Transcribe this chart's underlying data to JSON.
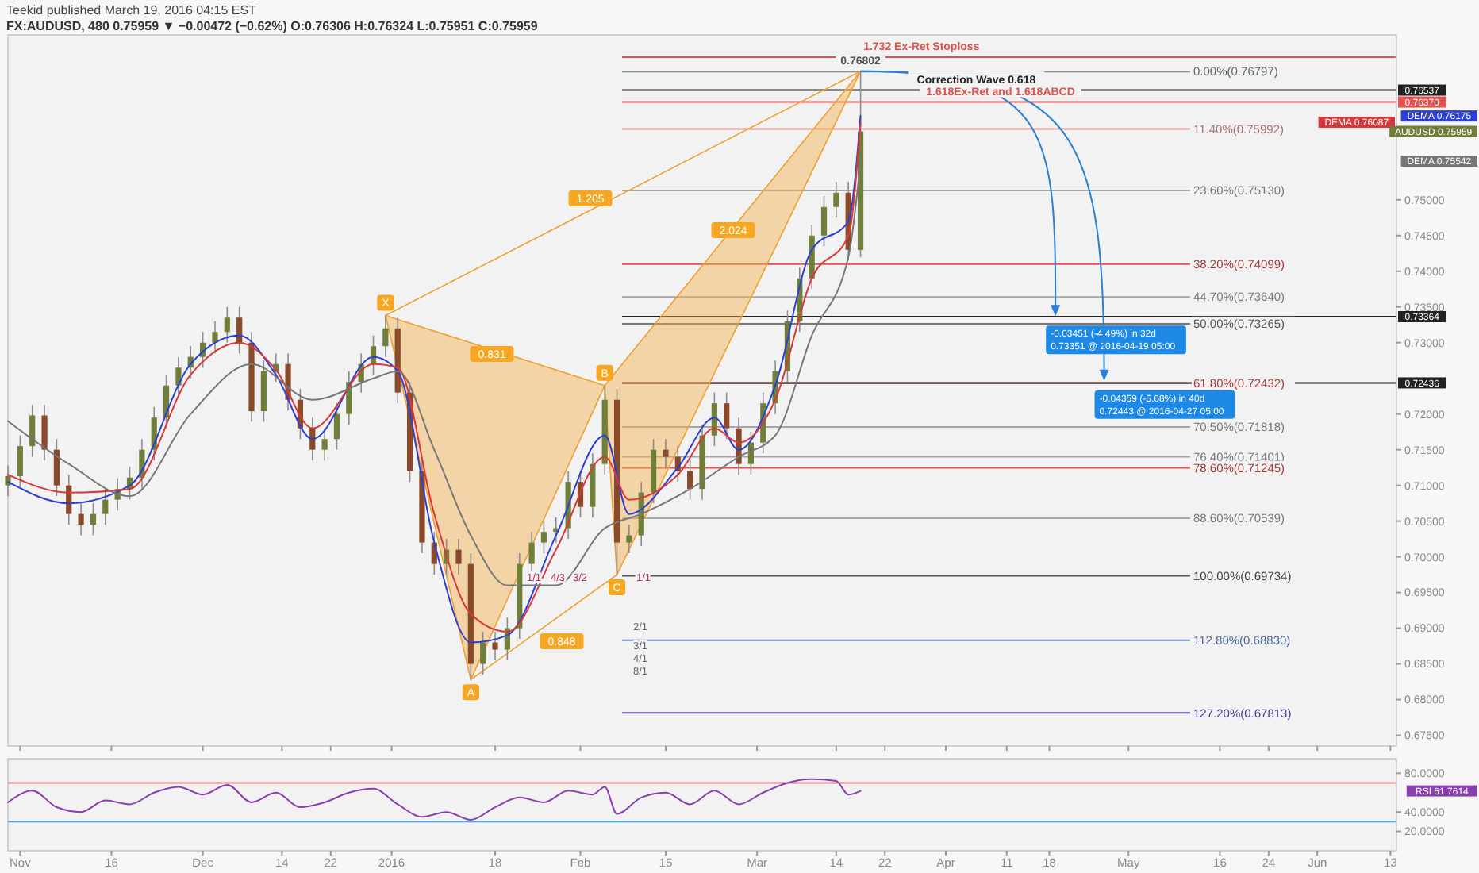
{
  "chart_data": [
    {
      "type": "candlestick",
      "title": "FX:AUDUSD, 480  0.75959 ▼ −0.00472 (−0.62%)  O:0.76306  H:0.76324  L:0.75951  C:0.75959",
      "subtitle": "Teekid published March 19, 2016 04:15 EST",
      "legend": "right",
      "xlim": [
        "2015-10-30",
        "2016-06-14"
      ],
      "xticks": [
        {
          "value": "2015-11-01",
          "label": null
        },
        {
          "value": "2015-11-16",
          "label": null
        },
        {
          "value": "2015-12-01",
          "label": null
        },
        {
          "value": "2015-12-14",
          "label": null
        },
        {
          "value": "2015-12-22",
          "label": null
        },
        {
          "value": "2016-01-01",
          "label": null
        },
        {
          "value": "2016-01-18",
          "label": null
        },
        {
          "value": "2016-02-01",
          "label": null
        },
        {
          "value": "2016-02-15",
          "label": null
        },
        {
          "value": "2016-03-01",
          "label": null
        },
        {
          "value": "2016-03-14",
          "label": null
        },
        {
          "value": "2016-03-22",
          "label": null
        },
        {
          "value": "2016-04-01",
          "label": null
        },
        {
          "value": "2016-04-11",
          "label": null
        },
        {
          "value": "2016-04-18",
          "label": null
        },
        {
          "value": "2016-05-01",
          "label": null
        },
        {
          "value": "2016-05-16",
          "label": null
        },
        {
          "value": "2016-05-24",
          "label": null
        },
        {
          "value": "2016-06-01",
          "label": null
        },
        {
          "value": "2016-06-13",
          "label": null
        }
      ],
      "ylim": [
        0.6735,
        0.7731
      ],
      "yticks": [
        {
          "value": 0.675,
          "label": "0.67500"
        },
        {
          "value": 0.68,
          "label": "0.68000"
        },
        {
          "value": 0.685,
          "label": "0.68500"
        },
        {
          "value": 0.69,
          "label": "0.69000"
        },
        {
          "value": 0.695,
          "label": "0.69500"
        },
        {
          "value": 0.7,
          "label": "0.70000"
        },
        {
          "value": 0.705,
          "label": "0.70500"
        },
        {
          "value": 0.71,
          "label": "0.71000"
        },
        {
          "value": 0.715,
          "label": "0.71500"
        },
        {
          "value": 0.72,
          "label": "0.72000"
        },
        {
          "value": 0.73,
          "label": "0.73000"
        },
        {
          "value": 0.735,
          "label": "0.73500"
        },
        {
          "value": 0.74,
          "label": "0.74000"
        },
        {
          "value": 0.745,
          "label": "0.74500"
        },
        {
          "value": 0.75,
          "label": "0.75000"
        }
      ],
      "tick_labels": "y",
      "series": [
        {
          "name": "AUDUSD 0.75959",
          "x": [
            "2015-10-30",
            "2015-11-01",
            "2015-11-03",
            "2015-11-05",
            "2015-11-07",
            "2015-11-09",
            "2015-11-11",
            "2015-11-13",
            "2015-11-15",
            "2015-11-17",
            "2015-11-19",
            "2015-11-21",
            "2015-11-23",
            "2015-11-25",
            "2015-11-27",
            "2015-11-29",
            "2015-12-01",
            "2015-12-03",
            "2015-12-05",
            "2015-12-07",
            "2015-12-09",
            "2015-12-11",
            "2015-12-13",
            "2015-12-15",
            "2015-12-17",
            "2015-12-19",
            "2015-12-21",
            "2015-12-23",
            "2015-12-25",
            "2015-12-27",
            "2015-12-29",
            "2015-12-31",
            "2016-01-02",
            "2016-01-04",
            "2016-01-06",
            "2016-01-08",
            "2016-01-10",
            "2016-01-12",
            "2016-01-14",
            "2016-01-16",
            "2016-01-18",
            "2016-01-20",
            "2016-01-22",
            "2016-01-24",
            "2016-01-26",
            "2016-01-28",
            "2016-01-30",
            "2016-02-01",
            "2016-02-03",
            "2016-02-05",
            "2016-02-07",
            "2016-02-09",
            "2016-02-11",
            "2016-02-13",
            "2016-02-15",
            "2016-02-17",
            "2016-02-19",
            "2016-02-21",
            "2016-02-23",
            "2016-02-25",
            "2016-02-27",
            "2016-02-29",
            "2016-03-02",
            "2016-03-04",
            "2016-03-06",
            "2016-03-08",
            "2016-03-10",
            "2016-03-12",
            "2016-03-14",
            "2016-03-16",
            "2016-03-18"
          ],
          "ohlc": [
            [
              0.71,
              0.7128,
              0.7085,
              0.7113
            ],
            [
              0.7113,
              0.717,
              0.7098,
              0.7155
            ],
            [
              0.7155,
              0.7213,
              0.714,
              0.7198
            ],
            [
              0.7198,
              0.7213,
              0.7135,
              0.715
            ],
            [
              0.715,
              0.7165,
              0.7085,
              0.71
            ],
            [
              0.71,
              0.7115,
              0.7045,
              0.706
            ],
            [
              0.706,
              0.7075,
              0.703,
              0.7045
            ],
            [
              0.7045,
              0.7075,
              0.703,
              0.706
            ],
            [
              0.706,
              0.7095,
              0.7045,
              0.708
            ],
            [
              0.708,
              0.711,
              0.7065,
              0.7095
            ],
            [
              0.7095,
              0.7126,
              0.708,
              0.7111
            ],
            [
              0.7111,
              0.7165,
              0.7096,
              0.715
            ],
            [
              0.715,
              0.721,
              0.7135,
              0.7195
            ],
            [
              0.7195,
              0.7255,
              0.718,
              0.724
            ],
            [
              0.724,
              0.728,
              0.7225,
              0.7265
            ],
            [
              0.7265,
              0.7295,
              0.725,
              0.728
            ],
            [
              0.728,
              0.7315,
              0.7265,
              0.73
            ],
            [
              0.73,
              0.733,
              0.7285,
              0.7315
            ],
            [
              0.7315,
              0.735,
              0.73,
              0.7335
            ],
            [
              0.7335,
              0.735,
              0.7285,
              0.73
            ],
            [
              0.73,
              0.7315,
              0.7189,
              0.7204
            ],
            [
              0.7204,
              0.7275,
              0.7189,
              0.726
            ],
            [
              0.726,
              0.7285,
              0.7245,
              0.727
            ],
            [
              0.727,
              0.7285,
              0.7205,
              0.722
            ],
            [
              0.722,
              0.7235,
              0.7165,
              0.718
            ],
            [
              0.718,
              0.7195,
              0.7135,
              0.715
            ],
            [
              0.715,
              0.718,
              0.7135,
              0.7165
            ],
            [
              0.7165,
              0.7215,
              0.715,
              0.72
            ],
            [
              0.72,
              0.726,
              0.7185,
              0.7245
            ],
            [
              0.7245,
              0.7285,
              0.723,
              0.727
            ],
            [
              0.727,
              0.731,
              0.7255,
              0.7295
            ],
            [
              0.7295,
              0.7338,
              0.728,
              0.732
            ],
            [
              0.732,
              0.7335,
              0.7215,
              0.723
            ],
            [
              0.723,
              0.7245,
              0.7105,
              0.712
            ],
            [
              0.712,
              0.7135,
              0.7005,
              0.702
            ],
            [
              0.702,
              0.7035,
              0.6975,
              0.699
            ],
            [
              0.699,
              0.7025,
              0.6975,
              0.701
            ],
            [
              0.701,
              0.7025,
              0.6975,
              0.699
            ],
            [
              0.699,
              0.7005,
              0.6828,
              0.685
            ],
            [
              0.685,
              0.6895,
              0.6835,
              0.688
            ],
            [
              0.688,
              0.6895,
              0.6855,
              0.687
            ],
            [
              0.687,
              0.6915,
              0.6855,
              0.69
            ],
            [
              0.69,
              0.7005,
              0.6885,
              0.699
            ],
            [
              0.699,
              0.7035,
              0.6975,
              0.702
            ],
            [
              0.702,
              0.705,
              0.7005,
              0.7035
            ],
            [
              0.7035,
              0.7055,
              0.702,
              0.704
            ],
            [
              0.704,
              0.712,
              0.7025,
              0.7105
            ],
            [
              0.7105,
              0.712,
              0.7055,
              0.707
            ],
            [
              0.707,
              0.7145,
              0.7055,
              0.713
            ],
            [
              0.713,
              0.724,
              0.7115,
              0.722
            ],
            [
              0.722,
              0.7235,
              0.6975,
              0.702
            ],
            [
              0.702,
              0.7045,
              0.7005,
              0.703
            ],
            [
              0.703,
              0.7105,
              0.7015,
              0.709
            ],
            [
              0.709,
              0.7165,
              0.7075,
              0.715
            ],
            [
              0.715,
              0.7165,
              0.7125,
              0.714
            ],
            [
              0.714,
              0.7155,
              0.7105,
              0.712
            ],
            [
              0.712,
              0.7135,
              0.708,
              0.7095
            ],
            [
              0.7095,
              0.7185,
              0.708,
              0.717
            ],
            [
              0.717,
              0.723,
              0.7155,
              0.7215
            ],
            [
              0.7215,
              0.723,
              0.7165,
              0.718
            ],
            [
              0.718,
              0.7195,
              0.7115,
              0.713
            ],
            [
              0.713,
              0.7175,
              0.7115,
              0.716
            ],
            [
              0.716,
              0.723,
              0.7145,
              0.7215
            ],
            [
              0.7215,
              0.7275,
              0.72,
              0.726
            ],
            [
              0.726,
              0.7345,
              0.7245,
              0.733
            ],
            [
              0.733,
              0.7405,
              0.7315,
              0.739
            ],
            [
              0.739,
              0.7465,
              0.7375,
              0.745
            ],
            [
              0.745,
              0.7505,
              0.7435,
              0.749
            ],
            [
              0.749,
              0.7525,
              0.7475,
              0.751
            ],
            [
              0.751,
              0.7525,
              0.7415,
              0.743
            ],
            [
              0.743,
              0.76802,
              0.742,
              0.75959
            ]
          ]
        },
        {
          "type": "line",
          "name": "DEMA 0.76175",
          "color": "#2b3fd6",
          "x": [
            "2015-10-30",
            "2015-11-09",
            "2015-11-19",
            "2015-11-29",
            "2015-12-07",
            "2015-12-13",
            "2015-12-19",
            "2015-12-29",
            "2016-01-02",
            "2016-01-08",
            "2016-01-14",
            "2016-01-20",
            "2016-01-28",
            "2016-02-05",
            "2016-02-09",
            "2016-02-17",
            "2016-02-23",
            "2016-02-27",
            "2016-03-04",
            "2016-03-10",
            "2016-03-16",
            "2016-03-18"
          ],
          "values": [
            0.7105,
            0.7075,
            0.71,
            0.727,
            0.731,
            0.7255,
            0.7165,
            0.728,
            0.726,
            0.702,
            0.688,
            0.689,
            0.703,
            0.717,
            0.706,
            0.7125,
            0.7195,
            0.715,
            0.724,
            0.743,
            0.747,
            0.76175
          ]
        },
        {
          "type": "line",
          "name": "DEMA 0.76087",
          "color": "#d9383a",
          "x": [
            "2015-10-30",
            "2015-11-09",
            "2015-11-19",
            "2015-11-29",
            "2015-12-07",
            "2015-12-13",
            "2015-12-19",
            "2015-12-29",
            "2016-01-02",
            "2016-01-08",
            "2016-01-14",
            "2016-01-20",
            "2016-01-28",
            "2016-02-05",
            "2016-02-09",
            "2016-02-17",
            "2016-02-23",
            "2016-02-27",
            "2016-03-04",
            "2016-03-10",
            "2016-03-16",
            "2016-03-18"
          ],
          "values": [
            0.7115,
            0.709,
            0.7095,
            0.7255,
            0.73,
            0.7262,
            0.718,
            0.727,
            0.7265,
            0.706,
            0.692,
            0.6895,
            0.701,
            0.714,
            0.708,
            0.7115,
            0.718,
            0.716,
            0.722,
            0.739,
            0.745,
            0.76087
          ]
        },
        {
          "type": "line",
          "name": "DEMA 0.75542",
          "color": "#777777",
          "x": [
            "2015-10-30",
            "2015-11-09",
            "2015-11-19",
            "2015-11-29",
            "2015-12-09",
            "2015-12-19",
            "2015-12-29",
            "2016-01-02",
            "2016-01-08",
            "2016-01-14",
            "2016-01-20",
            "2016-01-28",
            "2016-02-05",
            "2016-02-11",
            "2016-02-19",
            "2016-02-27",
            "2016-03-04",
            "2016-03-10",
            "2016-03-16",
            "2016-03-18"
          ],
          "values": [
            0.719,
            0.713,
            0.7085,
            0.72,
            0.727,
            0.722,
            0.725,
            0.726,
            0.715,
            0.703,
            0.696,
            0.696,
            0.704,
            0.706,
            0.7095,
            0.714,
            0.717,
            0.731,
            0.742,
            0.75542
          ]
        }
      ],
      "ref_lines": [
        {
          "axis": "y",
          "value": 0.76797,
          "label": "0.00%(0.76797)",
          "color": "#8a8a8a",
          "line_style": "solid"
        },
        {
          "axis": "y",
          "value": 0.75992,
          "label": "11.40%(0.75992)",
          "color": "#e39a9a",
          "line_style": "solid"
        },
        {
          "axis": "y",
          "value": 0.7513,
          "label": "23.60%(0.75130)",
          "color": "#a5a5a5",
          "line_style": "solid"
        },
        {
          "axis": "y",
          "value": 0.74099,
          "label": "38.20%(0.74099)",
          "color": "#e0524f",
          "line_style": "solid"
        },
        {
          "axis": "y",
          "value": 0.7364,
          "label": "44.70%(0.73640)",
          "color": "#a5a5a5",
          "line_style": "solid"
        },
        {
          "axis": "y",
          "value": 0.73265,
          "label": "50.00%(0.73265)",
          "color": "#777777",
          "line_style": "solid"
        },
        {
          "axis": "y",
          "value": 0.72432,
          "label": "61.80%(0.72432)",
          "color": "#e0524f",
          "line_style": "solid"
        },
        {
          "axis": "y",
          "value": 0.71818,
          "label": "70.50%(0.71818)",
          "color": "#a5a5a5",
          "line_style": "solid"
        },
        {
          "axis": "y",
          "value": 0.71401,
          "label": "76.40%(0.71401)",
          "color": "#a5a5a5",
          "line_style": "solid"
        },
        {
          "axis": "y",
          "value": 0.71245,
          "label": "78.60%(0.71245)",
          "color": "#e0524f",
          "line_style": "solid"
        },
        {
          "axis": "y",
          "value": 0.70539,
          "label": "88.60%(0.70539)",
          "color": "#a5a5a5",
          "line_style": "solid"
        },
        {
          "axis": "y",
          "value": 0.69734,
          "label": "100.00%(0.69734)",
          "color": "#555555",
          "line_style": "solid"
        },
        {
          "axis": "y",
          "value": 0.6883,
          "label": "112.80%(0.68830)",
          "color": "#6b8fd6",
          "line_style": "solid"
        },
        {
          "axis": "y",
          "value": 0.67813,
          "label": "127.20%(0.67813)",
          "color": "#5a4fcf",
          "line_style": "solid"
        },
        {
          "axis": "y",
          "value": 0.77,
          "color": "#e0524f"
        },
        {
          "axis": "y",
          "value": 0.76537,
          "label": "0.76537",
          "color": "#222222"
        },
        {
          "axis": "y",
          "value": 0.7637,
          "label": "0.76370",
          "color": "#e0524f"
        },
        {
          "axis": "y",
          "value": 0.73364,
          "label": "0.73364",
          "color": "#222222"
        },
        {
          "axis": "y",
          "value": 0.72436,
          "label": "0.72436",
          "color": "#222222"
        }
      ],
      "annotations": [
        {
          "text": "X",
          "x": "2015-12-31",
          "y": 0.7338
        },
        {
          "text": "A",
          "x": "2016-01-14",
          "y": 0.6828
        },
        {
          "text": "B",
          "x": "2016-02-05",
          "y": 0.724
        },
        {
          "text": "C",
          "x": "2016-02-07",
          "y": 0.6975
        },
        {
          "text": "1.732 Ex-Ret Stoploss",
          "x": "2016-03-28",
          "y": 0.77
        },
        {
          "text": "Correction Wave 0.618",
          "x": "2016-04-06",
          "y": 0.76537
        },
        {
          "text": "1.618Ex-Ret and 1.618ABCD",
          "x": "2016-04-10",
          "y": 0.7637
        },
        {
          "text": "0.76802",
          "x": "2016-03-18",
          "y": 0.76802
        },
        {
          "text": "-0.03451 (-4.49%) in 32d\n0.73351 @ 2016-04-19  05:00",
          "x": "2016-04-19",
          "y": 0.73351
        },
        {
          "text": "-0.04359 (-5.68%) in 40d\n0.72443 @ 2016-04-27  05:00",
          "x": "2016-04-27",
          "y": 0.72443
        },
        "0.831",
        "0.848",
        "1.205",
        "2.024",
        "1/1",
        "4/3",
        "3/2",
        "1/1",
        "2/1",
        "3/1",
        "4/1",
        "8/1"
      ]
    },
    {
      "type": "line",
      "legend": "right",
      "xlim": [
        "2015-10-30",
        "2016-06-14"
      ],
      "xticks": [
        {
          "value": "2015-11-01",
          "label": "Nov"
        },
        {
          "value": "2015-11-16",
          "label": "16"
        },
        {
          "value": "2015-12-01",
          "label": "Dec"
        },
        {
          "value": "2015-12-14",
          "label": "14"
        },
        {
          "value": "2015-12-22",
          "label": "22"
        },
        {
          "value": "2016-01-01",
          "label": "2016"
        },
        {
          "value": "2016-01-18",
          "label": "18"
        },
        {
          "value": "2016-02-01",
          "label": "Feb"
        },
        {
          "value": "2016-02-15",
          "label": "15"
        },
        {
          "value": "2016-03-01",
          "label": "Mar"
        },
        {
          "value": "2016-03-14",
          "label": "14"
        },
        {
          "value": "2016-03-22",
          "label": "22"
        },
        {
          "value": "2016-04-01",
          "label": "Apr"
        },
        {
          "value": "2016-04-11",
          "label": "11"
        },
        {
          "value": "2016-04-18",
          "label": "18"
        },
        {
          "value": "2016-05-01",
          "label": "May"
        },
        {
          "value": "2016-05-16",
          "label": "16"
        },
        {
          "value": "2016-05-24",
          "label": "24"
        },
        {
          "value": "2016-06-01",
          "label": "Jun"
        },
        {
          "value": "2016-06-13",
          "label": "13"
        }
      ],
      "ylim": [
        0,
        95
      ],
      "yticks": [
        {
          "value": 80,
          "label": "80.0000"
        },
        {
          "value": 40,
          "label": "40.0000"
        },
        {
          "value": 20,
          "label": "20.0000"
        }
      ],
      "series": [
        {
          "name": "RSI 61.7614",
          "color": "#8a3fb0",
          "x": [
            "2015-10-30",
            "2015-11-03",
            "2015-11-07",
            "2015-11-11",
            "2015-11-15",
            "2015-11-19",
            "2015-11-23",
            "2015-11-27",
            "2015-12-01",
            "2015-12-05",
            "2015-12-09",
            "2015-12-13",
            "2015-12-17",
            "2015-12-21",
            "2015-12-25",
            "2015-12-29",
            "2016-01-02",
            "2016-01-06",
            "2016-01-10",
            "2016-01-14",
            "2016-01-18",
            "2016-01-22",
            "2016-01-26",
            "2016-01-30",
            "2016-02-03",
            "2016-02-05",
            "2016-02-07",
            "2016-02-11",
            "2016-02-15",
            "2016-02-19",
            "2016-02-23",
            "2016-02-27",
            "2016-03-02",
            "2016-03-06",
            "2016-03-10",
            "2016-03-14",
            "2016-03-16",
            "2016-03-18"
          ],
          "values": [
            50,
            62,
            45,
            40,
            52,
            48,
            60,
            66,
            58,
            68,
            50,
            60,
            45,
            50,
            60,
            64,
            48,
            35,
            40,
            32,
            45,
            55,
            50,
            62,
            58,
            66,
            38,
            55,
            60,
            48,
            62,
            48,
            60,
            70,
            74,
            72,
            58,
            61.7614
          ]
        }
      ],
      "ref_lines": [
        {
          "axis": "y",
          "value": 70,
          "color": "#e08080"
        },
        {
          "axis": "y",
          "value": 30,
          "color": "#4fa3d9"
        }
      ]
    }
  ]
}
